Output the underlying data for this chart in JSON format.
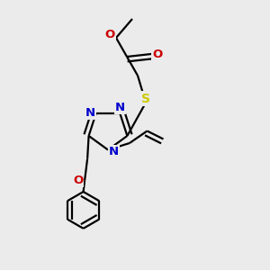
{
  "bg_color": "#ebebeb",
  "atom_colors": {
    "C": "#000000",
    "N": "#0000cc",
    "O": "#cc0000",
    "S": "#cccc00",
    "H": "#000000"
  },
  "bond_color": "#000000",
  "figure_size": [
    3.0,
    3.0
  ],
  "dpi": 100,
  "bond_lw": 1.6,
  "font_size": 9.5
}
